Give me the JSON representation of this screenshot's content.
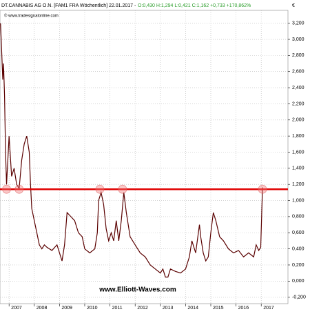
{
  "chart_data": {
    "type": "line",
    "title": "DT.CANNABIS AG  O.N. [FAM1 FRA  Wöchentlich] 22.01.2017 -",
    "quote": "O:0,430 H:1,294 L:0,421 C:1,162 +0,733 +170,862%",
    "currency": "€",
    "source": "© www.tradesignalonline.com",
    "watermark": "www.Elliott-Waves.com",
    "xlim": [
      2006.64,
      2018.06
    ],
    "xticks": [
      2007,
      2008,
      2009,
      2010,
      2011,
      2012,
      2013,
      2014,
      2015,
      2016,
      2017
    ],
    "ylim": [
      -0.28,
      3.36
    ],
    "yticks": [
      {
        "value": 3.2,
        "label": "3,200"
      },
      {
        "value": 3.0,
        "label": "3,000"
      },
      {
        "value": 2.8,
        "label": "2,800"
      },
      {
        "value": 2.6,
        "label": "2,600"
      },
      {
        "value": 2.4,
        "label": "2,400"
      },
      {
        "value": 2.2,
        "label": "2,200"
      },
      {
        "value": 2.0,
        "label": "2,000"
      },
      {
        "value": 1.8,
        "label": "1,800"
      },
      {
        "value": 1.6,
        "label": "1,600"
      },
      {
        "value": 1.4,
        "label": "1,400"
      },
      {
        "value": 1.2,
        "label": "1,200"
      },
      {
        "value": 1.0,
        "label": "1,000"
      },
      {
        "value": 0.8,
        "label": "0,800"
      },
      {
        "value": 0.6,
        "label": "0,600"
      },
      {
        "value": 0.4,
        "label": "0,400"
      },
      {
        "value": 0.2,
        "label": "0,200"
      },
      {
        "value": 0,
        "label": "0,000"
      },
      {
        "value": -0.2,
        "label": "-0,200"
      }
    ],
    "grid": true,
    "series": [
      {
        "name": "DT.CANNABIS AG",
        "color": "#5a0000",
        "x": [
          2006.66,
          2006.7,
          2006.75,
          2006.78,
          2006.82,
          2006.86,
          2006.9,
          2006.95,
          2007.0,
          2007.1,
          2007.2,
          2007.3,
          2007.4,
          2007.5,
          2007.6,
          2007.7,
          2007.8,
          2007.85,
          2007.9,
          2008.0,
          2008.1,
          2008.2,
          2008.3,
          2008.4,
          2008.5,
          2008.7,
          2008.9,
          2009.0,
          2009.1,
          2009.2,
          2009.3,
          2009.45,
          2009.6,
          2009.75,
          2009.9,
          2010.0,
          2010.2,
          2010.4,
          2010.5,
          2010.55,
          2010.65,
          2010.75,
          2010.85,
          2010.95,
          2011.05,
          2011.15,
          2011.25,
          2011.35,
          2011.45,
          2011.55,
          2011.65,
          2011.8,
          2012.0,
          2012.2,
          2012.4,
          2012.6,
          2012.8,
          2013.0,
          2013.1,
          2013.2,
          2013.3,
          2013.4,
          2013.6,
          2013.8,
          2014.0,
          2014.15,
          2014.25,
          2014.4,
          2014.55,
          2014.6,
          2014.7,
          2014.8,
          2014.9,
          2015.0,
          2015.1,
          2015.2,
          2015.35,
          2015.5,
          2015.7,
          2015.9,
          2016.1,
          2016.3,
          2016.5,
          2016.7,
          2016.8,
          2016.9,
          2016.98,
          2017.05
        ],
        "values": [
          3.2,
          2.9,
          2.5,
          2.7,
          2.3,
          1.6,
          1.2,
          1.5,
          1.8,
          1.3,
          1.4,
          1.2,
          1.15,
          1.5,
          1.7,
          1.8,
          1.6,
          1.2,
          0.9,
          0.75,
          0.6,
          0.45,
          0.4,
          0.45,
          0.42,
          0.38,
          0.45,
          0.35,
          0.25,
          0.45,
          0.85,
          0.8,
          0.75,
          0.6,
          0.55,
          0.4,
          0.35,
          0.4,
          0.6,
          1.0,
          1.1,
          0.95,
          0.65,
          0.5,
          0.6,
          0.5,
          0.75,
          0.5,
          0.75,
          1.1,
          0.85,
          0.55,
          0.45,
          0.35,
          0.3,
          0.2,
          0.15,
          0.1,
          0.15,
          0.05,
          0.05,
          0.15,
          0.12,
          0.1,
          0.15,
          0.3,
          0.5,
          0.35,
          0.7,
          0.55,
          0.35,
          0.25,
          0.3,
          0.6,
          0.85,
          0.75,
          0.55,
          0.5,
          0.4,
          0.35,
          0.38,
          0.3,
          0.35,
          0.3,
          0.45,
          0.38,
          0.42,
          1.162
        ]
      }
    ],
    "resistance": {
      "value": 1.14,
      "color": "#e00000",
      "touches": [
        2006.9,
        2007.4,
        2010.6,
        2011.5,
        2017.05
      ]
    }
  }
}
